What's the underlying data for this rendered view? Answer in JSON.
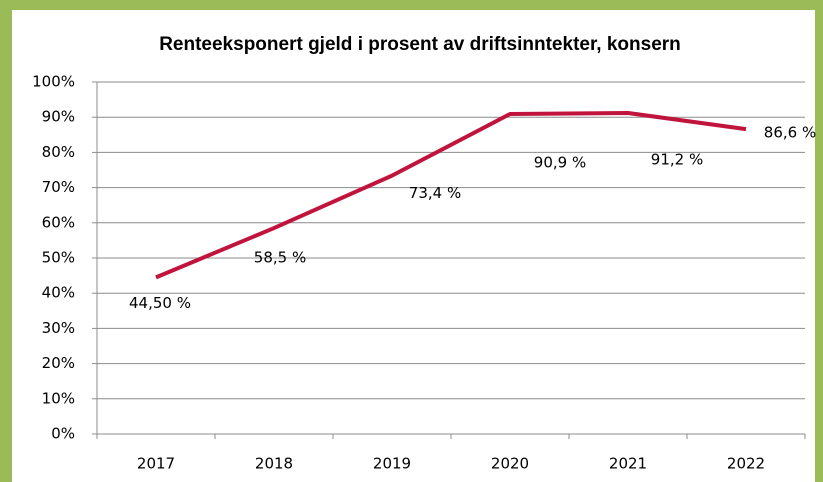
{
  "chart_data": {
    "type": "line",
    "title": "Renteeksponert gjeld i prosent av driftsinntekter, konsern",
    "categories": [
      "2017",
      "2018",
      "2019",
      "2020",
      "2021",
      "2022"
    ],
    "series": [
      {
        "name": "Renteeksponert gjeld i prosent av driftsinntekter",
        "color": "#c0143c",
        "values": [
          44.5,
          58.5,
          73.4,
          90.9,
          91.2,
          86.6
        ],
        "value_labels": [
          "44,50 %",
          "58,5 %",
          "73,4 %",
          "90,9 %",
          "91,2 %",
          "86,6 %"
        ]
      }
    ],
    "ylim": [
      0,
      100
    ],
    "yticks": [
      {
        "value": 0,
        "label": "0%"
      },
      {
        "value": 10,
        "label": "10%"
      },
      {
        "value": 20,
        "label": "20%"
      },
      {
        "value": 30,
        "label": "30%"
      },
      {
        "value": 40,
        "label": "40%"
      },
      {
        "value": 50,
        "label": "50%"
      },
      {
        "value": 60,
        "label": "60%"
      },
      {
        "value": 70,
        "label": "70%"
      },
      {
        "value": 80,
        "label": "80%"
      },
      {
        "value": 90,
        "label": "90%"
      },
      {
        "value": 100,
        "label": "100%"
      }
    ],
    "grid": true
  }
}
